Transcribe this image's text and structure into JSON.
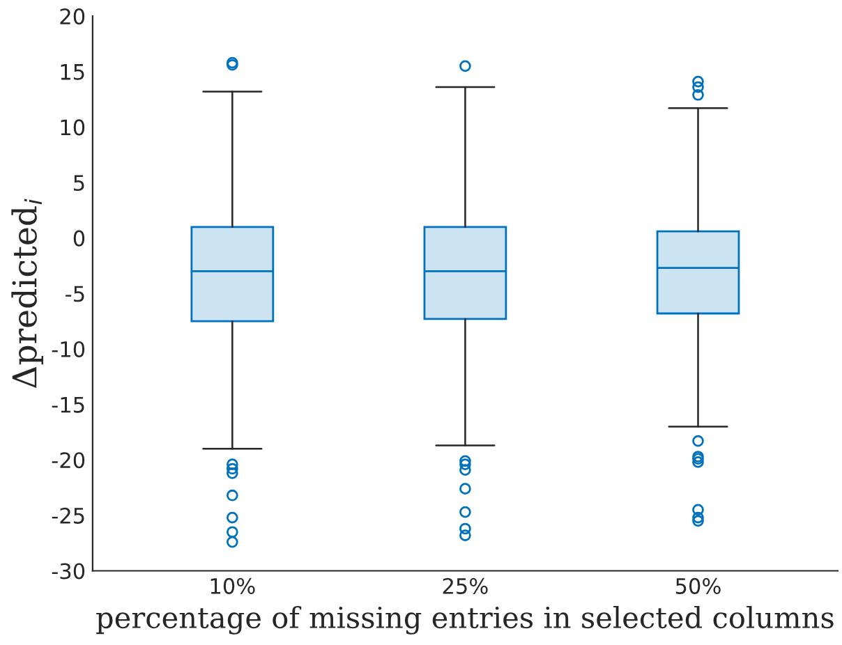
{
  "chart_data": {
    "type": "box",
    "xlabel": "percentage of missing entries in selected columns",
    "ylabel": "Δpredicted$_{i}$",
    "categories": [
      "10%",
      "25%",
      "50%"
    ],
    "color": "#0072bd",
    "boxes": [
      {
        "low": -19.0,
        "q1": -7.5,
        "median": -3.0,
        "q3": 1.0,
        "high": 13.2,
        "outliers": [
          15.8,
          15.6,
          -20.4,
          -20.8,
          -21.2,
          -23.2,
          -25.2,
          -26.5,
          -27.4
        ]
      },
      {
        "low": -18.7,
        "q1": -7.3,
        "median": -3.0,
        "q3": 1.0,
        "high": 13.6,
        "outliers": [
          15.5,
          -20.1,
          -20.4,
          -20.9,
          -22.6,
          -24.7,
          -26.2,
          -26.8
        ]
      },
      {
        "low": -17.0,
        "q1": -6.8,
        "median": -2.7,
        "q3": 0.6,
        "high": 11.7,
        "outliers": [
          14.1,
          13.6,
          12.9,
          -18.3,
          -19.7,
          -19.9,
          -20.2,
          -24.5,
          -25.2,
          -25.5
        ]
      }
    ],
    "ylim": [
      -30,
      20
    ],
    "yticks": [
      -30,
      -25,
      -20,
      -15,
      -10,
      -5,
      0,
      5,
      10,
      15,
      20
    ],
    "grid": false
  }
}
